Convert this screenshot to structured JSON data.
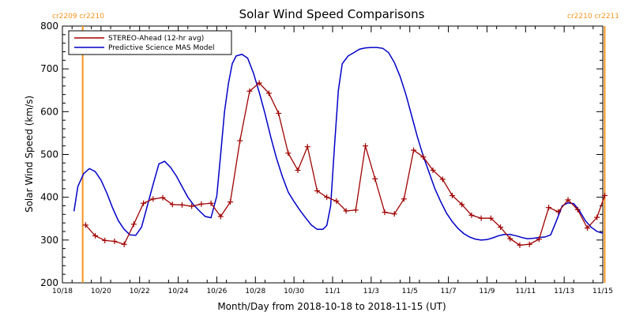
{
  "chart_data": {
    "type": "line",
    "title": "Solar Wind Speed Comparisons",
    "xlabel": "Month/Day from 2018-10-18 to 2018-11-15 (UT)",
    "ylabel": "Solar Wind Speed (km/s)",
    "xlim": [
      0,
      28
    ],
    "ylim": [
      200,
      800
    ],
    "yticks": [
      200,
      300,
      400,
      500,
      600,
      700,
      800
    ],
    "xticks": [
      {
        "x": 0,
        "label": "10/18"
      },
      {
        "x": 2,
        "label": "10/20"
      },
      {
        "x": 4,
        "label": "10/22"
      },
      {
        "x": 6,
        "label": "10/24"
      },
      {
        "x": 8,
        "label": "10/26"
      },
      {
        "x": 10,
        "label": "10/28"
      },
      {
        "x": 12,
        "label": "10/30"
      },
      {
        "x": 14,
        "label": "11/1"
      },
      {
        "x": 16,
        "label": "11/3"
      },
      {
        "x": 18,
        "label": "11/5"
      },
      {
        "x": 20,
        "label": "11/7"
      },
      {
        "x": 22,
        "label": "11/9"
      },
      {
        "x": 24,
        "label": "11/11"
      },
      {
        "x": 26,
        "label": "11/13"
      },
      {
        "x": 28,
        "label": "11/15"
      }
    ],
    "rotation_markers": [
      {
        "x": 1.05,
        "label": "cr2209 cr2210",
        "side": "left"
      },
      {
        "x": 28.1,
        "label": "cr2210 cr2211",
        "side": "right"
      }
    ],
    "legend_position": "top-left",
    "series": [
      {
        "name": "STEREO-Ahead (12-hr avg)",
        "color": "#a00000",
        "marker": "+",
        "points": [
          [
            1.2,
            335
          ],
          [
            1.7,
            310
          ],
          [
            2.2,
            299
          ],
          [
            2.7,
            297
          ],
          [
            3.2,
            290
          ],
          [
            3.7,
            337
          ],
          [
            4.2,
            386
          ],
          [
            4.7,
            396
          ],
          [
            5.2,
            399
          ],
          [
            5.7,
            383
          ],
          [
            6.2,
            382
          ],
          [
            6.7,
            379
          ],
          [
            7.2,
            384
          ],
          [
            7.7,
            386
          ],
          [
            8.2,
            355
          ],
          [
            8.7,
            389
          ],
          [
            9.2,
            532
          ],
          [
            9.7,
            648
          ],
          [
            10.2,
            667
          ],
          [
            10.7,
            643
          ],
          [
            11.2,
            596
          ],
          [
            11.7,
            503
          ],
          [
            12.2,
            463
          ],
          [
            12.7,
            518
          ],
          [
            13.2,
            415
          ],
          [
            13.7,
            400
          ],
          [
            14.2,
            391
          ],
          [
            14.7,
            368
          ],
          [
            15.2,
            370
          ],
          [
            15.7,
            520
          ],
          [
            16.2,
            443
          ],
          [
            16.7,
            365
          ],
          [
            17.2,
            361
          ],
          [
            17.7,
            396
          ],
          [
            18.2,
            510
          ],
          [
            18.7,
            494
          ],
          [
            19.2,
            463
          ],
          [
            19.7,
            442
          ],
          [
            20.2,
            404
          ],
          [
            20.7,
            383
          ],
          [
            21.2,
            358
          ],
          [
            21.7,
            351
          ],
          [
            22.2,
            351
          ],
          [
            22.7,
            330
          ],
          [
            23.2,
            303
          ],
          [
            23.7,
            288
          ],
          [
            24.2,
            290
          ],
          [
            24.7,
            302
          ],
          [
            25.2,
            376
          ],
          [
            25.7,
            366
          ],
          [
            26.2,
            394
          ],
          [
            26.7,
            371
          ],
          [
            27.2,
            328
          ],
          [
            27.7,
            353
          ],
          [
            28.1,
            404
          ]
        ]
      },
      {
        "name": "Predictive Science MAS Model",
        "color": "#0000c8",
        "points": [
          [
            0.6,
            367
          ],
          [
            0.8,
            425
          ],
          [
            1.1,
            455
          ],
          [
            1.4,
            467
          ],
          [
            1.7,
            460
          ],
          [
            2.0,
            440
          ],
          [
            2.3,
            410
          ],
          [
            2.6,
            375
          ],
          [
            2.9,
            345
          ],
          [
            3.2,
            325
          ],
          [
            3.5,
            312
          ],
          [
            3.8,
            311
          ],
          [
            4.1,
            330
          ],
          [
            4.4,
            380
          ],
          [
            4.7,
            430
          ],
          [
            5.0,
            478
          ],
          [
            5.3,
            484
          ],
          [
            5.6,
            470
          ],
          [
            5.9,
            450
          ],
          [
            6.2,
            425
          ],
          [
            6.5,
            400
          ],
          [
            6.8,
            382
          ],
          [
            7.1,
            368
          ],
          [
            7.4,
            355
          ],
          [
            7.7,
            352
          ],
          [
            8.0,
            403
          ],
          [
            8.2,
            500
          ],
          [
            8.4,
            600
          ],
          [
            8.6,
            665
          ],
          [
            8.8,
            712
          ],
          [
            9.0,
            730
          ],
          [
            9.3,
            734
          ],
          [
            9.6,
            725
          ],
          [
            9.9,
            690
          ],
          [
            10.2,
            645
          ],
          [
            10.5,
            595
          ],
          [
            10.8,
            540
          ],
          [
            11.1,
            490
          ],
          [
            11.4,
            448
          ],
          [
            11.7,
            412
          ],
          [
            12.0,
            390
          ],
          [
            12.3,
            370
          ],
          [
            12.6,
            352
          ],
          [
            12.9,
            335
          ],
          [
            13.2,
            325
          ],
          [
            13.5,
            325
          ],
          [
            13.7,
            334
          ],
          [
            13.9,
            380
          ],
          [
            14.1,
            520
          ],
          [
            14.3,
            650
          ],
          [
            14.5,
            712
          ],
          [
            14.8,
            730
          ],
          [
            15.1,
            738
          ],
          [
            15.4,
            746
          ],
          [
            15.7,
            749
          ],
          [
            16.0,
            750
          ],
          [
            16.3,
            750
          ],
          [
            16.6,
            748
          ],
          [
            16.9,
            738
          ],
          [
            17.2,
            715
          ],
          [
            17.5,
            682
          ],
          [
            17.8,
            640
          ],
          [
            18.1,
            590
          ],
          [
            18.4,
            540
          ],
          [
            18.7,
            496
          ],
          [
            19.0,
            458
          ],
          [
            19.3,
            420
          ],
          [
            19.6,
            390
          ],
          [
            19.9,
            363
          ],
          [
            20.2,
            343
          ],
          [
            20.5,
            327
          ],
          [
            20.8,
            315
          ],
          [
            21.1,
            307
          ],
          [
            21.4,
            302
          ],
          [
            21.7,
            300
          ],
          [
            22.0,
            301
          ],
          [
            22.3,
            305
          ],
          [
            22.6,
            310
          ],
          [
            22.9,
            313
          ],
          [
            23.2,
            313
          ],
          [
            23.5,
            310
          ],
          [
            23.8,
            306
          ],
          [
            24.1,
            303
          ],
          [
            24.4,
            304
          ],
          [
            24.7,
            306
          ],
          [
            25.0,
            307
          ],
          [
            25.3,
            312
          ],
          [
            25.6,
            345
          ],
          [
            25.9,
            380
          ],
          [
            26.2,
            387
          ],
          [
            26.5,
            385
          ],
          [
            26.8,
            368
          ],
          [
            27.1,
            345
          ],
          [
            27.4,
            330
          ],
          [
            27.7,
            320
          ],
          [
            28.0,
            316
          ]
        ]
      }
    ]
  }
}
